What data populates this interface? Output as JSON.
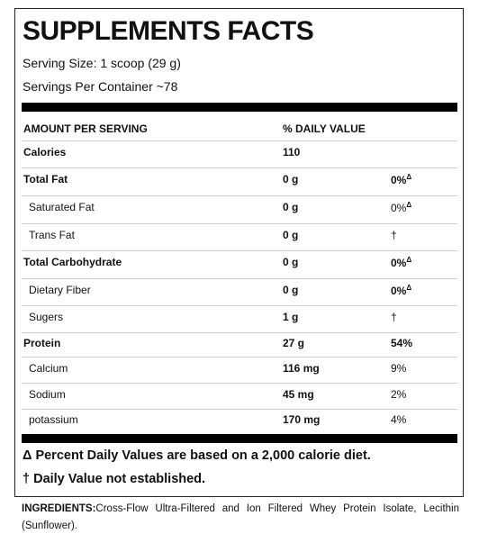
{
  "title": "SUPPLEMENTS FACTS",
  "serving_size": "Serving Size: 1 scoop (29 g)",
  "servings_per_container": "Servings Per Container ~78",
  "header": {
    "amount": "AMOUNT PER SERVING",
    "daily_value": "% DAILY VALUE"
  },
  "rows": [
    {
      "name": "Calories",
      "amount": "110",
      "dv": "",
      "dv_mark": "",
      "bold_name": true,
      "bold_dv": false
    },
    {
      "name": "Total Fat",
      "amount": "0 g",
      "dv": "0%",
      "dv_mark": "Δ",
      "bold_name": true,
      "bold_dv": true
    },
    {
      "name": "Saturated Fat",
      "amount": "0 g",
      "dv": "0%",
      "dv_mark": "Δ",
      "bold_name": false,
      "bold_dv": false
    },
    {
      "name": "Trans Fat",
      "amount": "0 g",
      "dv": "†",
      "dv_mark": "",
      "bold_name": false,
      "bold_dv": false
    },
    {
      "name": "Total Carbohydrate",
      "amount": "0 g",
      "dv": "0%",
      "dv_mark": "Δ",
      "bold_name": true,
      "bold_dv": true
    },
    {
      "name": "Dietary Fiber",
      "amount": "0 g",
      "dv": "0%",
      "dv_mark": "Δ",
      "bold_name": false,
      "bold_dv": true
    },
    {
      "name": "Sugers",
      "amount": "1 g",
      "dv": "†",
      "dv_mark": "",
      "bold_name": false,
      "bold_dv": false
    },
    {
      "name": "Protein",
      "amount": "27 g",
      "dv": "54%",
      "dv_mark": "",
      "bold_name": true,
      "bold_dv": true
    },
    {
      "name": "Calcium",
      "amount": "116 mg",
      "dv": "9%",
      "dv_mark": "",
      "bold_name": false,
      "bold_dv": false
    },
    {
      "name": "Sodium",
      "amount": "45 mg",
      "dv": "2%",
      "dv_mark": "",
      "bold_name": false,
      "bold_dv": false
    },
    {
      "name": "potassium",
      "amount": "170 mg",
      "dv": "4%",
      "dv_mark": "",
      "bold_name": false,
      "bold_dv": false
    }
  ],
  "footnote_delta": "Δ Percent Daily Values are based on a 2,000 calorie diet.",
  "footnote_dagger": "† Daily Value not established.",
  "ingredients": {
    "label": "INGREDIENTS:",
    "text": "Cross-Flow Ultra-Filtered and Ion Filtered Whey Protein Isolate, Lecithin (Sunflower)."
  }
}
